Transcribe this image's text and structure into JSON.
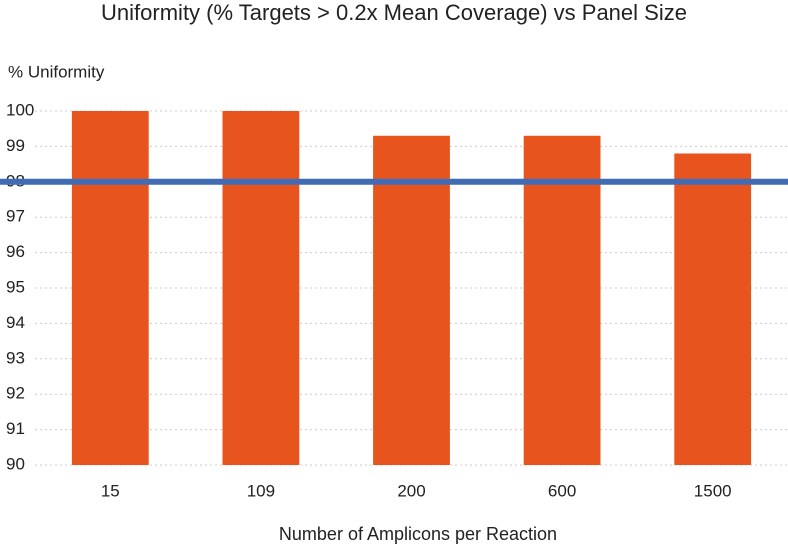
{
  "chart_data": {
    "type": "bar",
    "title": "Uniformity (% Targets > 0.2x Mean Coverage) vs Panel Size",
    "y_label": "% Uniformity",
    "x_label": "Number of Amplicons per Reaction",
    "categories": [
      "15",
      "109",
      "200",
      "600",
      "1500"
    ],
    "values": [
      100,
      100,
      99.3,
      99.3,
      98.8
    ],
    "color": "#e8541e",
    "ylim": [
      90,
      100
    ],
    "yticks": [
      90,
      91,
      92,
      93,
      94,
      95,
      96,
      97,
      98,
      99,
      100
    ],
    "grid": true,
    "reference_line": {
      "value": 98,
      "color": "#3f6cb5"
    }
  }
}
